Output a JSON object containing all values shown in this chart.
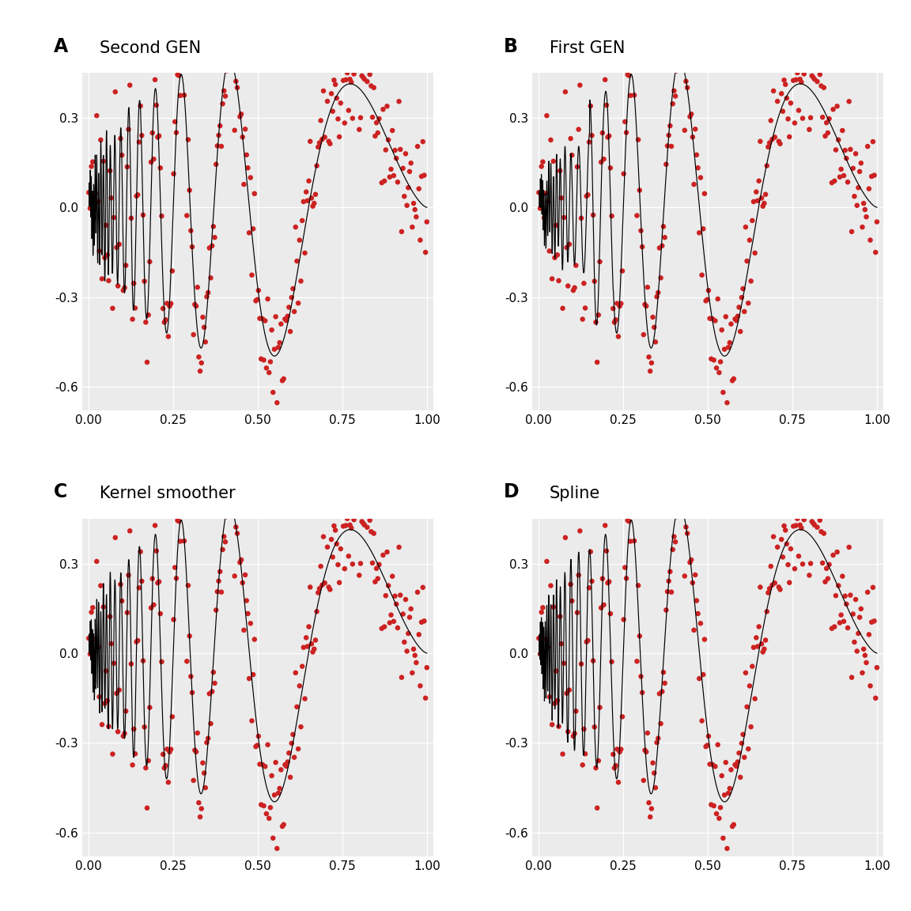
{
  "titles": [
    "Second GEN",
    "First GEN",
    "Kernel smoother",
    "Spline"
  ],
  "labels": [
    "A",
    "B",
    "C",
    "D"
  ],
  "background_color": "#ebebeb",
  "dot_color": "#cc2222",
  "line_color": "#000000",
  "xlim": [
    -0.02,
    1.02
  ],
  "ylim": [
    -0.68,
    0.45
  ],
  "xticks": [
    0.0,
    0.25,
    0.5,
    0.75,
    1.0
  ],
  "yticks": [
    -0.6,
    -0.3,
    0.0,
    0.3
  ],
  "dot_size": 22,
  "dot_alpha": 1.0,
  "seed": 42,
  "n_points": 256,
  "title_fontsize": 15,
  "label_fontsize": 17,
  "tick_fontsize": 11
}
